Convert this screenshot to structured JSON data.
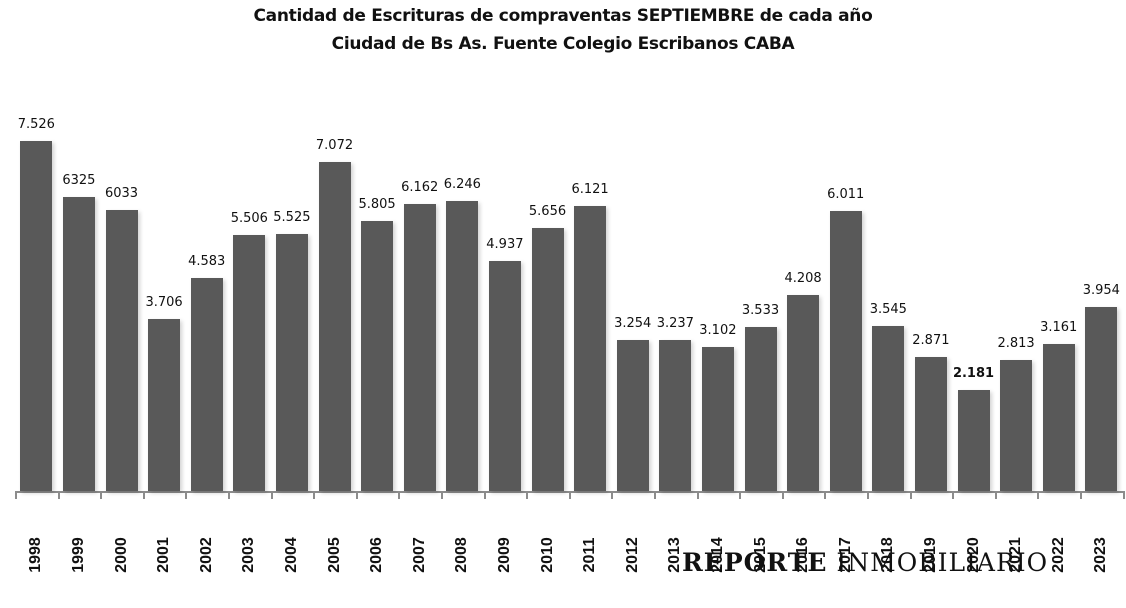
{
  "title": {
    "line1": "Cantidad de Escrituras de compraventas SEPTIEMBRE de cada año",
    "line2": "Ciudad de Bs As. Fuente Colegio Escribanos CABA"
  },
  "brand": {
    "bold": "REPORTE",
    "regular": "INMOBILIARIO"
  },
  "colors": {
    "bar": "#595959",
    "axis": "#8c8c8c",
    "text": "#111111",
    "background": "#ffffff"
  },
  "chart_data": {
    "type": "bar",
    "title": "Cantidad de Escrituras de compraventas SEPTIEMBRE de cada año — Ciudad de Bs As. Fuente Colegio Escribanos CABA",
    "xlabel": "",
    "ylabel": "",
    "grid": false,
    "legend": null,
    "ylim": [
      0,
      7600
    ],
    "categories": [
      "1998",
      "1999",
      "2000",
      "2001",
      "2002",
      "2003",
      "2004",
      "2005",
      "2006",
      "2007",
      "2008",
      "2009",
      "2010",
      "2011",
      "2012",
      "2013",
      "2014",
      "2015",
      "2016",
      "2017",
      "2018",
      "2019",
      "2020",
      "2021",
      "2022",
      "2023"
    ],
    "values": [
      7526,
      6325,
      6033,
      3706,
      4583,
      5506,
      5525,
      7072,
      5805,
      6162,
      6246,
      4937,
      5656,
      6121,
      3254,
      3237,
      3102,
      3533,
      4208,
      6011,
      3545,
      2871,
      2181,
      2813,
      3161,
      3954
    ],
    "labels": [
      "7.526",
      "6325",
      "6033",
      "3.706",
      "4.583",
      "5.506",
      "5.525",
      "7.072",
      "5.805",
      "6.162",
      "6.246",
      "4.937",
      "5.656",
      "6.121",
      "3.254",
      "3.237",
      "3.102",
      "3.533",
      "4.208",
      "6.011",
      "3.545",
      "2.871",
      "2.181",
      "2.813",
      "3.161",
      "3.954"
    ],
    "bold_labels": [
      "2020"
    ]
  }
}
